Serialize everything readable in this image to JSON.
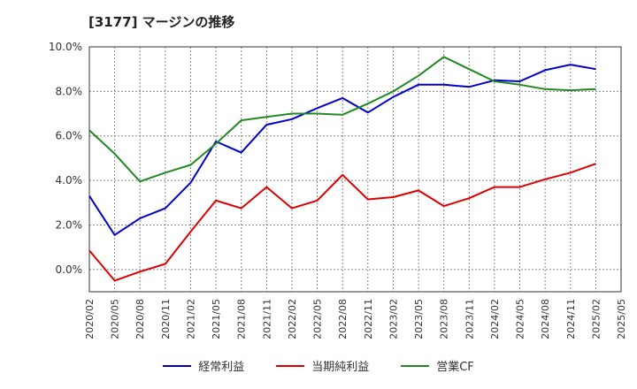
{
  "chart_data": {
    "type": "line",
    "title": "[3177]  マージンの推移",
    "x": [
      "2020/02",
      "2020/05",
      "2020/08",
      "2020/11",
      "2021/02",
      "2021/05",
      "2021/08",
      "2021/11",
      "2022/02",
      "2022/05",
      "2022/08",
      "2022/11",
      "2023/02",
      "2023/05",
      "2023/08",
      "2023/11",
      "2024/02",
      "2024/05",
      "2024/08",
      "2024/11",
      "2025/02"
    ],
    "x_ticks": [
      "2020/02",
      "2020/05",
      "2020/08",
      "2020/11",
      "2021/02",
      "2021/05",
      "2021/08",
      "2021/11",
      "2022/02",
      "2022/05",
      "2022/08",
      "2022/11",
      "2023/02",
      "2023/05",
      "2023/08",
      "2023/11",
      "2024/02",
      "2024/05",
      "2024/08",
      "2024/11",
      "2025/02",
      "2025/05"
    ],
    "y_ticks": [
      "0.0%",
      "2.0%",
      "4.0%",
      "6.0%",
      "8.0%",
      "10.0%"
    ],
    "ylim": [
      -1.0,
      10.0
    ],
    "y_tick_values": [
      0,
      2,
      4,
      6,
      8,
      10
    ],
    "grid": true,
    "legend_position": "bottom",
    "series": [
      {
        "name": "経常利益",
        "color": "#0000cc",
        "values": [
          3.3,
          1.55,
          2.3,
          2.75,
          3.9,
          5.75,
          5.25,
          6.5,
          6.75,
          7.25,
          7.7,
          7.05,
          7.75,
          8.3,
          8.3,
          8.2,
          8.5,
          8.45,
          8.95,
          9.2,
          9.0
        ]
      },
      {
        "name": "当期純利益",
        "color": "#dd0000",
        "values": [
          0.85,
          -0.5,
          -0.1,
          0.25,
          1.7,
          3.1,
          2.75,
          3.7,
          2.75,
          3.1,
          4.25,
          3.15,
          3.25,
          3.55,
          2.85,
          3.2,
          3.7,
          3.7,
          4.05,
          4.35,
          4.75
        ]
      },
      {
        "name": "営業CF",
        "color": "#228822",
        "values": [
          6.25,
          5.2,
          3.95,
          4.35,
          4.7,
          5.65,
          6.7,
          6.85,
          7.0,
          7.0,
          6.95,
          7.45,
          8.0,
          8.7,
          9.55,
          9.0,
          8.45,
          8.3,
          8.1,
          8.05,
          8.1
        ]
      }
    ]
  }
}
